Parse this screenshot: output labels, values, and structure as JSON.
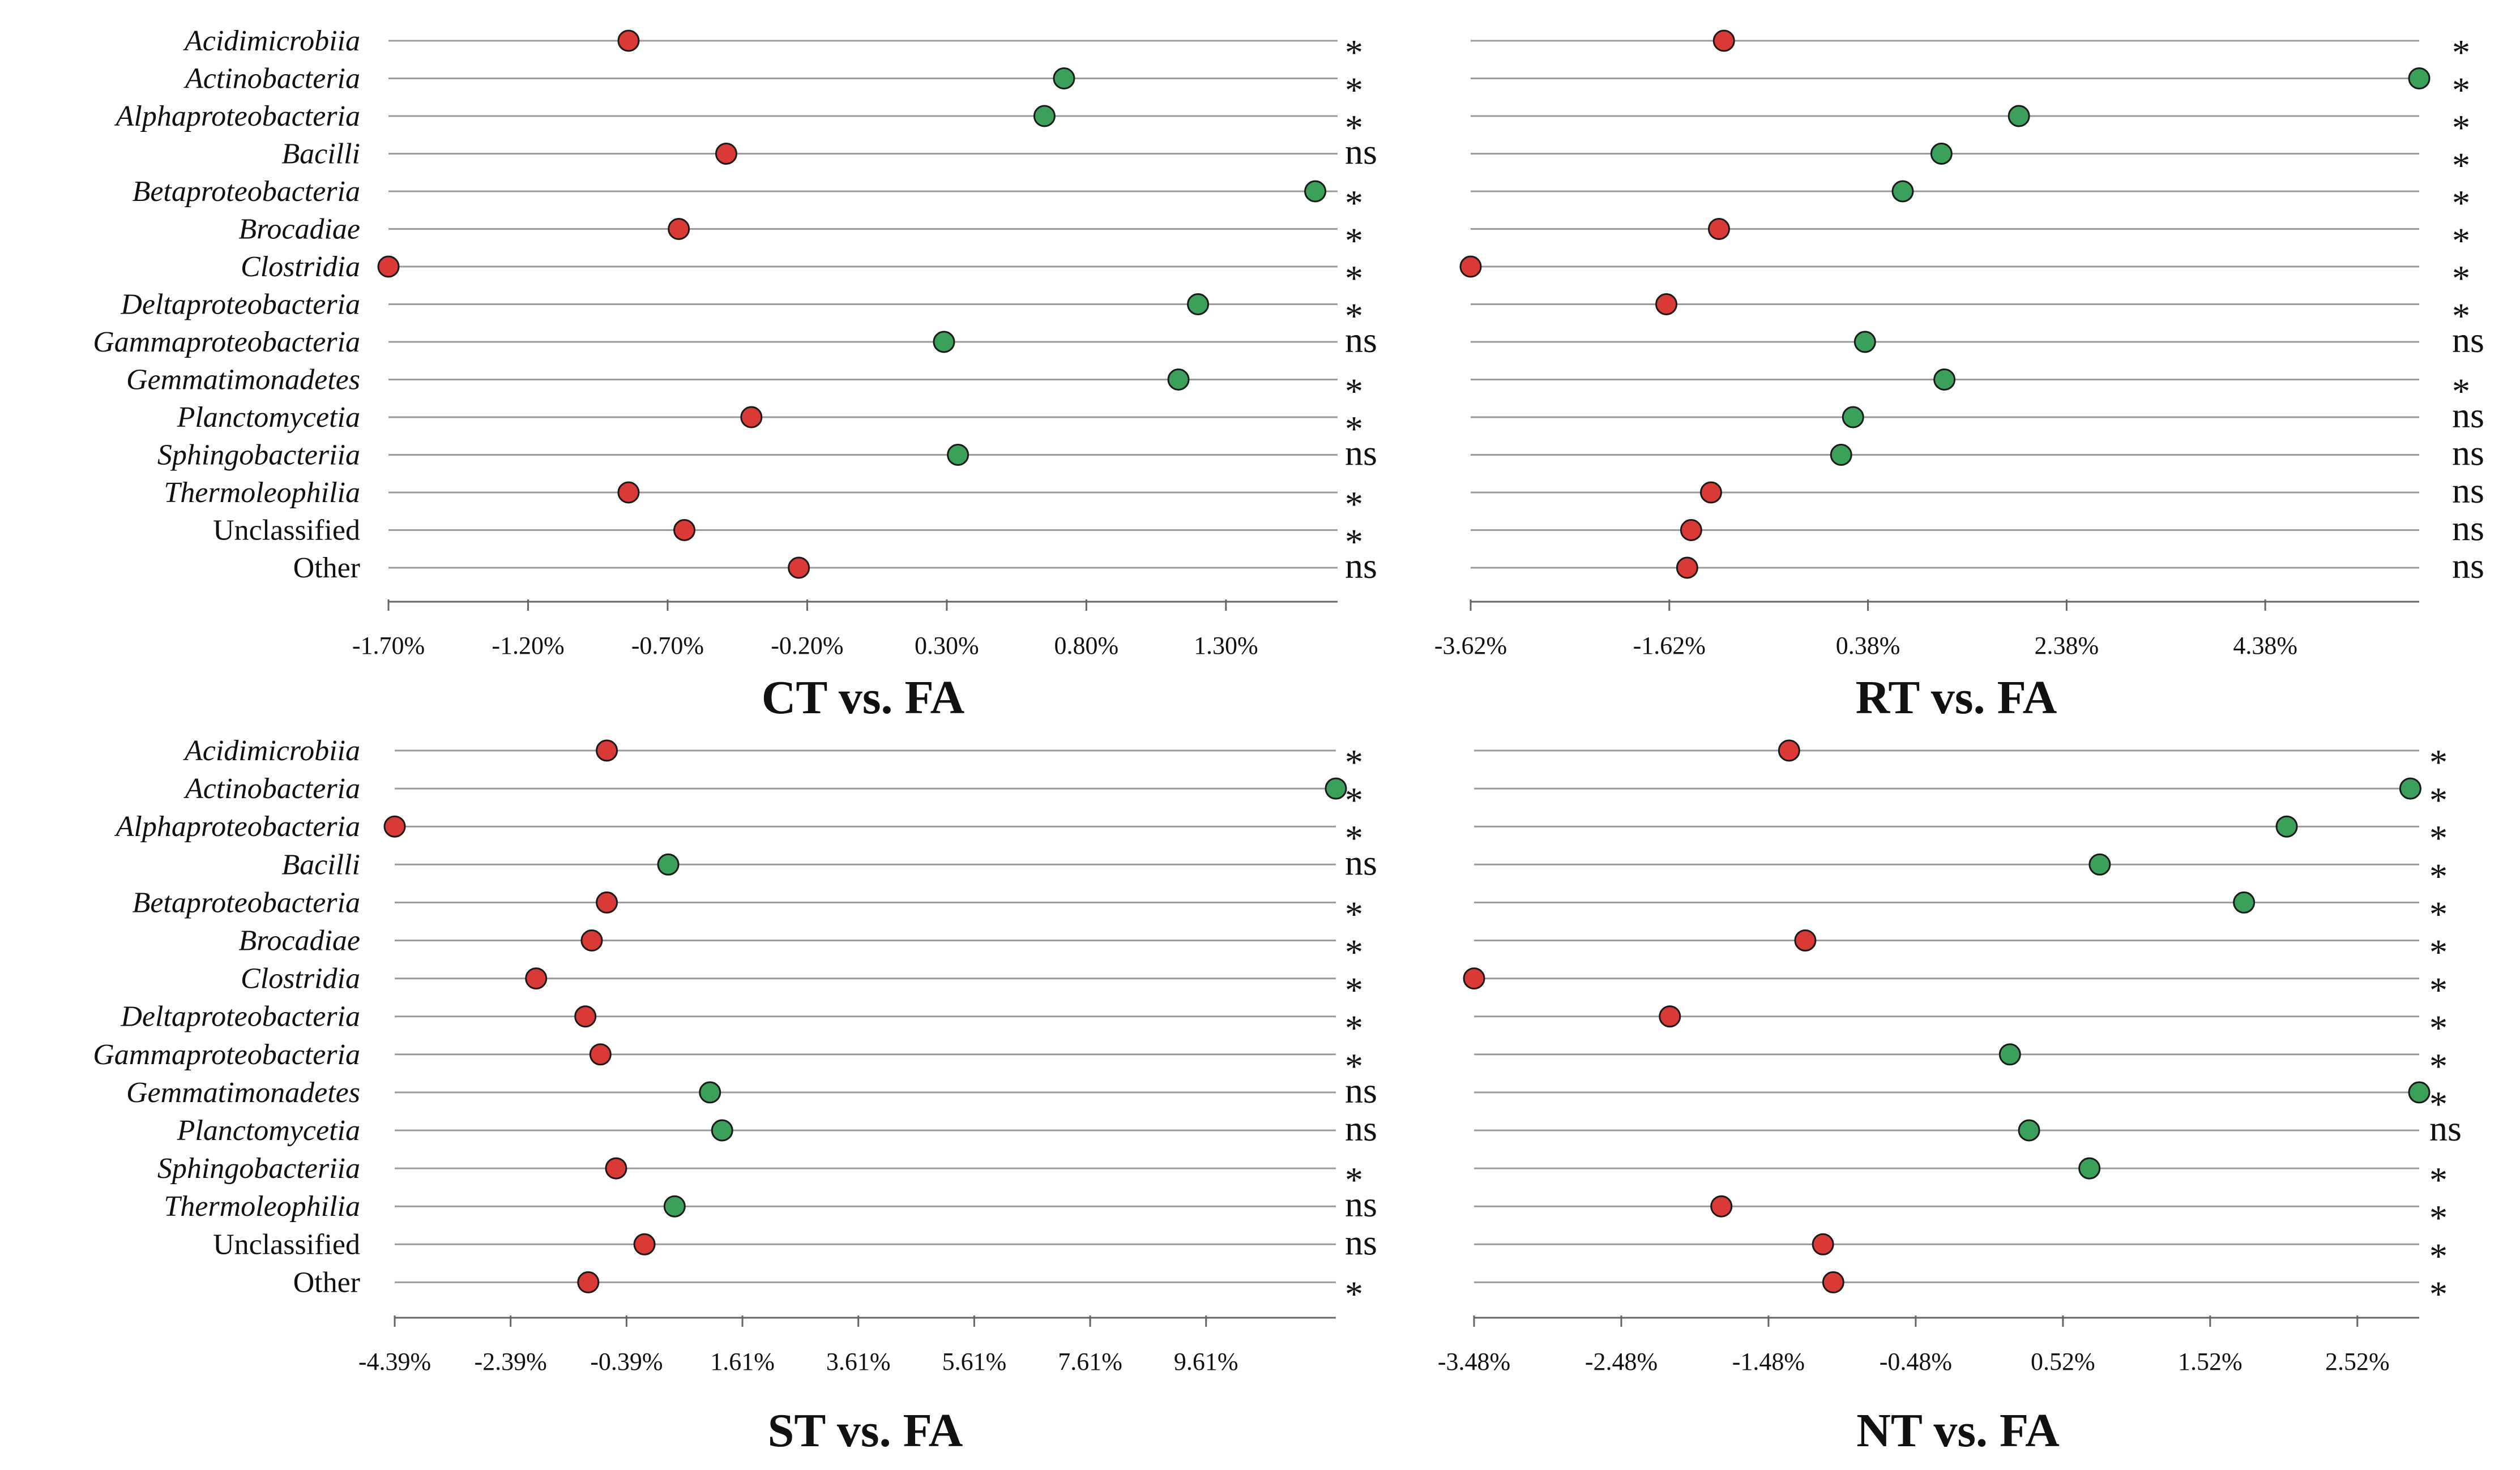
{
  "colors": {
    "increase": "#3aa05a",
    "decrease": "#d93a36",
    "grid": "#9a9a9a",
    "axis": "#666666"
  },
  "chart_data": [
    {
      "type": "scatter",
      "title": "CT vs. FA",
      "categories": [
        "Acidimicrobiia",
        "Actinobacteria",
        "Alphaproteobacteria",
        "Bacilli",
        "Betaproteobacteria",
        "Brocadiae",
        "Clostridia",
        "Deltaproteobacteria",
        "Gammaproteobacteria",
        "Gemmatimonadetes",
        "Planctomycetia",
        "Sphingobacteriia",
        "Thermoleophilia",
        "Unclassified",
        "Other"
      ],
      "italic": [
        true,
        true,
        true,
        true,
        true,
        true,
        true,
        true,
        true,
        true,
        true,
        true,
        true,
        false,
        false
      ],
      "xlim": [
        -1.7,
        1.7
      ],
      "ticks": [
        -1.7,
        -1.2,
        -0.7,
        -0.2,
        0.3,
        0.8,
        1.3
      ],
      "tick_labels": [
        "-1.70%",
        "-1.20%",
        "-0.70%",
        "-0.20%",
        "0.30%",
        "0.80%",
        "1.30%"
      ],
      "values": [
        -0.84,
        0.72,
        0.65,
        -0.49,
        1.62,
        -0.66,
        -1.7,
        1.2,
        0.29,
        1.13,
        -0.4,
        0.34,
        -0.84,
        -0.64,
        -0.23
      ],
      "significance": [
        "*",
        "*",
        "*",
        "ns",
        "*",
        "*",
        "*",
        "*",
        "ns",
        "*",
        "*",
        "ns",
        "*",
        "*",
        "ns"
      ]
    },
    {
      "type": "scatter",
      "title": "RT vs. FA",
      "categories": [
        "Acidimicrobiia",
        "Actinobacteria",
        "Alphaproteobacteria",
        "Bacilli",
        "Betaproteobacteria",
        "Brocadiae",
        "Clostridia",
        "Deltaproteobacteria",
        "Gammaproteobacteria",
        "Gemmatimonadetes",
        "Planctomycetia",
        "Sphingobacteriia",
        "Thermoleophilia",
        "Unclassified",
        "Other"
      ],
      "xlim": [
        -3.62,
        5.93
      ],
      "ticks": [
        -3.62,
        -1.62,
        0.38,
        2.38,
        4.38
      ],
      "tick_labels": [
        "-3.62%",
        "-1.62%",
        "0.38%",
        "2.38%",
        "4.38%"
      ],
      "values": [
        -1.07,
        5.93,
        1.9,
        1.12,
        0.73,
        -1.12,
        -3.62,
        -1.65,
        0.35,
        1.15,
        0.23,
        0.11,
        -1.2,
        -1.4,
        -1.44
      ],
      "significance": [
        "*",
        "*",
        "*",
        "*",
        "*",
        "*",
        "*",
        "*",
        "ns",
        "*",
        "ns",
        "ns",
        "ns",
        "ns",
        "ns"
      ]
    },
    {
      "type": "scatter",
      "title": "ST vs. FA",
      "categories": [
        "Acidimicrobiia",
        "Actinobacteria",
        "Alphaproteobacteria",
        "Bacilli",
        "Betaproteobacteria",
        "Brocadiae",
        "Clostridia",
        "Deltaproteobacteria",
        "Gammaproteobacteria",
        "Gemmatimonadetes",
        "Planctomycetia",
        "Sphingobacteriia",
        "Thermoleophilia",
        "Unclassified",
        "Other"
      ],
      "italic": [
        true,
        true,
        true,
        true,
        true,
        true,
        true,
        true,
        true,
        true,
        true,
        true,
        true,
        false,
        false
      ],
      "xlim": [
        -4.39,
        11.85
      ],
      "ticks": [
        -4.39,
        -2.39,
        -0.39,
        1.61,
        3.61,
        5.61,
        7.61,
        9.61
      ],
      "tick_labels": [
        "-4.39%",
        "-2.39%",
        "-0.39%",
        "1.61%",
        "3.61%",
        "5.61%",
        "7.61%",
        "9.61%"
      ],
      "values": [
        -0.73,
        11.85,
        -4.39,
        0.33,
        -0.73,
        -0.99,
        -1.95,
        -1.1,
        -0.84,
        1.05,
        1.26,
        -0.57,
        0.44,
        -0.08,
        -1.05
      ],
      "significance": [
        "*",
        "*",
        "*",
        "ns",
        "*",
        "*",
        "*",
        "*",
        "*",
        "ns",
        "ns",
        "*",
        "ns",
        "ns",
        "*"
      ]
    },
    {
      "type": "scatter",
      "title": "NT vs. FA",
      "categories": [
        "Acidimicrobiia",
        "Actinobacteria",
        "Alphaproteobacteria",
        "Bacilli",
        "Betaproteobacteria",
        "Brocadiae",
        "Clostridia",
        "Deltaproteobacteria",
        "Gammaproteobacteria",
        "Gemmatimonadetes",
        "Planctomycetia",
        "Sphingobacteriia",
        "Thermoleophilia",
        "Unclassified",
        "Other"
      ],
      "xlim": [
        -3.48,
        2.94
      ],
      "ticks": [
        -3.48,
        -2.48,
        -1.48,
        -0.48,
        0.52,
        1.52,
        2.52
      ],
      "tick_labels": [
        "-3.48%",
        "-2.48%",
        "-1.48%",
        "-0.48%",
        "0.52%",
        "1.52%",
        "2.52%"
      ],
      "values": [
        -1.34,
        2.88,
        2.04,
        0.77,
        1.75,
        -1.23,
        -3.48,
        -2.15,
        0.16,
        2.94,
        0.29,
        0.7,
        -1.8,
        -1.11,
        -1.04
      ],
      "significance": [
        "*",
        "*",
        "*",
        "*",
        "*",
        "*",
        "*",
        "*",
        "*",
        "*",
        "ns",
        "*",
        "*",
        "*",
        "*"
      ]
    }
  ]
}
